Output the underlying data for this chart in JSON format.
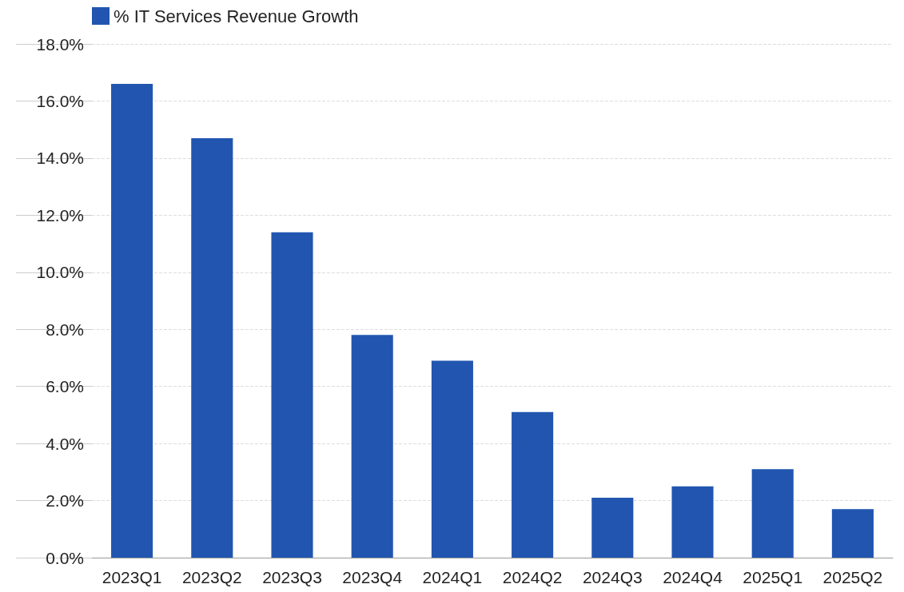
{
  "chart_data": {
    "type": "bar",
    "categories": [
      "2023Q1",
      "2023Q2",
      "2023Q3",
      "2023Q4",
      "2024Q1",
      "2024Q2",
      "2024Q3",
      "2024Q4",
      "2025Q1",
      "2025Q2"
    ],
    "series": [
      {
        "name": "% IT Services Revenue Growth",
        "color": "#2155b0",
        "values": [
          16.6,
          14.7,
          11.4,
          7.8,
          6.9,
          5.1,
          2.1,
          2.5,
          3.1,
          1.7
        ]
      }
    ],
    "ylim": [
      0,
      18
    ],
    "yticks": [
      {
        "value": 0,
        "label": "0.0%"
      },
      {
        "value": 2,
        "label": "2.0%"
      },
      {
        "value": 4,
        "label": "4.0%"
      },
      {
        "value": 6,
        "label": "6.0%"
      },
      {
        "value": 8,
        "label": "8.0%"
      },
      {
        "value": 10,
        "label": "10.0%"
      },
      {
        "value": 12,
        "label": "12.0%"
      },
      {
        "value": 14,
        "label": "14.0%"
      },
      {
        "value": 16,
        "label": "16.0%"
      },
      {
        "value": 18,
        "label": "18.0%"
      }
    ],
    "grid": "y",
    "legend": "top left"
  }
}
